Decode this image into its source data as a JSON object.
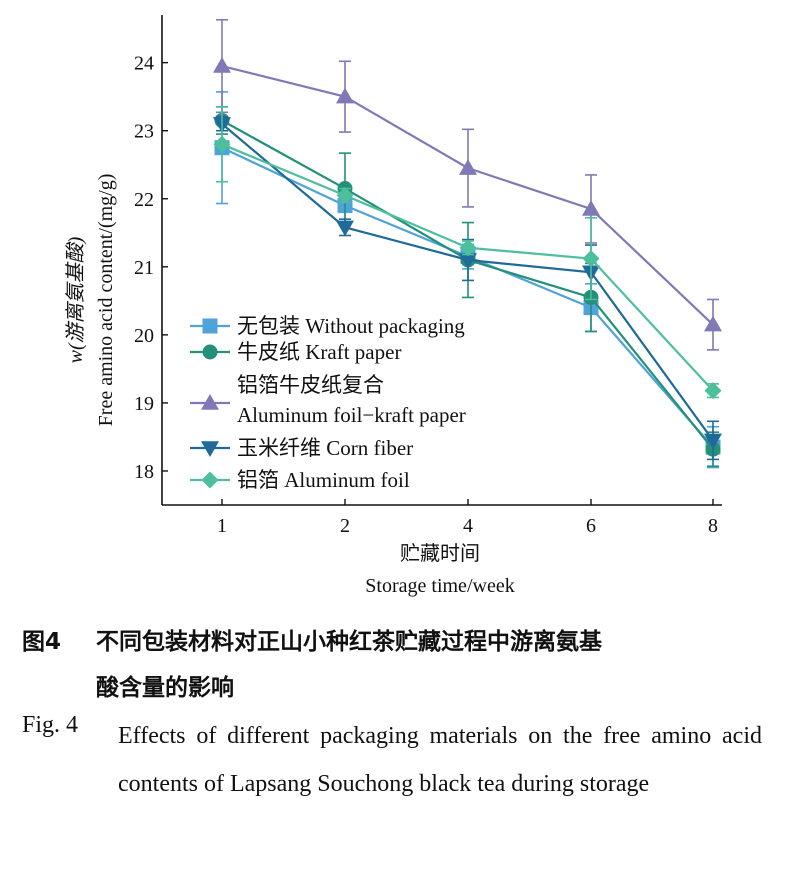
{
  "chart_data": {
    "type": "line",
    "title": "",
    "xlabel_cn": "贮藏时间",
    "xlabel": "Storage time/week",
    "ylabel_cn": "w(游离氨基酸)",
    "ylabel": "Free amino acid content/(mg/g)",
    "x": [
      1,
      2,
      4,
      6,
      8
    ],
    "x_tick_labels": [
      "1",
      "2",
      "4",
      "6",
      "8"
    ],
    "ylim": [
      17.5,
      24.7
    ],
    "y_ticks": [
      18,
      19,
      20,
      21,
      22,
      23,
      24
    ],
    "y_tick_labels": [
      "18",
      "19",
      "20",
      "21",
      "22",
      "23",
      "24"
    ],
    "legend_position": "bottom-left",
    "series": [
      {
        "name": "无包装 Without packaging",
        "marker": "square",
        "color": "#4fa3d8",
        "values": [
          22.75,
          21.9,
          21.15,
          20.4,
          18.35
        ],
        "errors": [
          0.82,
          0.25,
          0.18,
          0.35,
          0.3
        ]
      },
      {
        "name": "牛皮纸 Kraft paper",
        "marker": "circle",
        "color": "#249079",
        "values": [
          23.15,
          22.15,
          21.1,
          20.55,
          18.32
        ],
        "errors": [
          0.2,
          0.52,
          0.55,
          0.5,
          0.25
        ]
      },
      {
        "name": "铝箔牛皮纸复合 Aluminum foil−kraft paper",
        "legend_lines": [
          "铝箔牛皮纸复合",
          "Aluminum foil−kraft paper"
        ],
        "marker": "triangle-up",
        "color": "#8079b6",
        "values": [
          23.95,
          23.5,
          22.45,
          21.85,
          20.15
        ],
        "errors": [
          0.68,
          0.52,
          0.57,
          0.5,
          0.37
        ]
      },
      {
        "name": "玉米纤维 Corn fiber",
        "marker": "triangle-down",
        "color": "#1f6a98",
        "values": [
          23.1,
          21.58,
          21.1,
          20.92,
          18.45
        ],
        "errors": [
          0.1,
          0.12,
          0.3,
          0.4,
          0.28
        ]
      },
      {
        "name": "铝箔 Aluminum foil",
        "marker": "diamond",
        "color": "#4dbf9d",
        "values": [
          22.8,
          22.05,
          21.28,
          21.12,
          19.18
        ],
        "errors": [
          0.55,
          0.1,
          0.1,
          0.6,
          0.1
        ]
      }
    ]
  },
  "caption": {
    "cn_label": "图4",
    "cn_line1": "不同包装材料对正山小种红茶贮藏过程中游离氨基",
    "cn_line2": "酸含量的影响",
    "en_label": "Fig. 4",
    "en_text": "Effects of different packaging materials on the free amino acid contents of Lapsang Souchong black tea during storage"
  }
}
